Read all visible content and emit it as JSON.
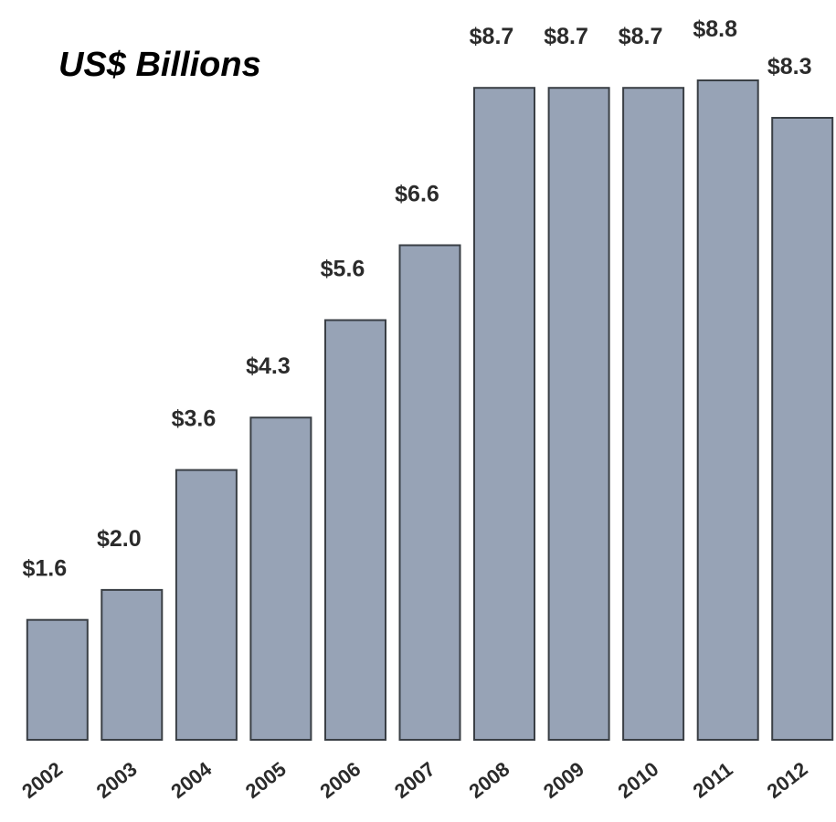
{
  "chart_data": {
    "type": "bar",
    "title": "US$ Billions",
    "xlabel": "",
    "ylabel": "",
    "categories": [
      "2002",
      "2003",
      "2004",
      "2005",
      "2006",
      "2007",
      "2008",
      "2009",
      "2010",
      "2011",
      "2012"
    ],
    "values": [
      1.6,
      2.0,
      3.6,
      4.3,
      5.6,
      6.6,
      8.7,
      8.7,
      8.7,
      8.8,
      8.3
    ],
    "data_labels": [
      "$1.6",
      "$2.0",
      "$3.6",
      "$4.3",
      "$5.6",
      "$6.6",
      "$8.7",
      "$8.7",
      "$8.7",
      "$8.8",
      "$8.3"
    ],
    "ylim": [
      0,
      8.8
    ],
    "grid": false,
    "legend": "none",
    "colors": {
      "bar_fill": "#97a3b6",
      "bar_edge": "#3a3f45",
      "text": "#2b2b2b"
    }
  }
}
